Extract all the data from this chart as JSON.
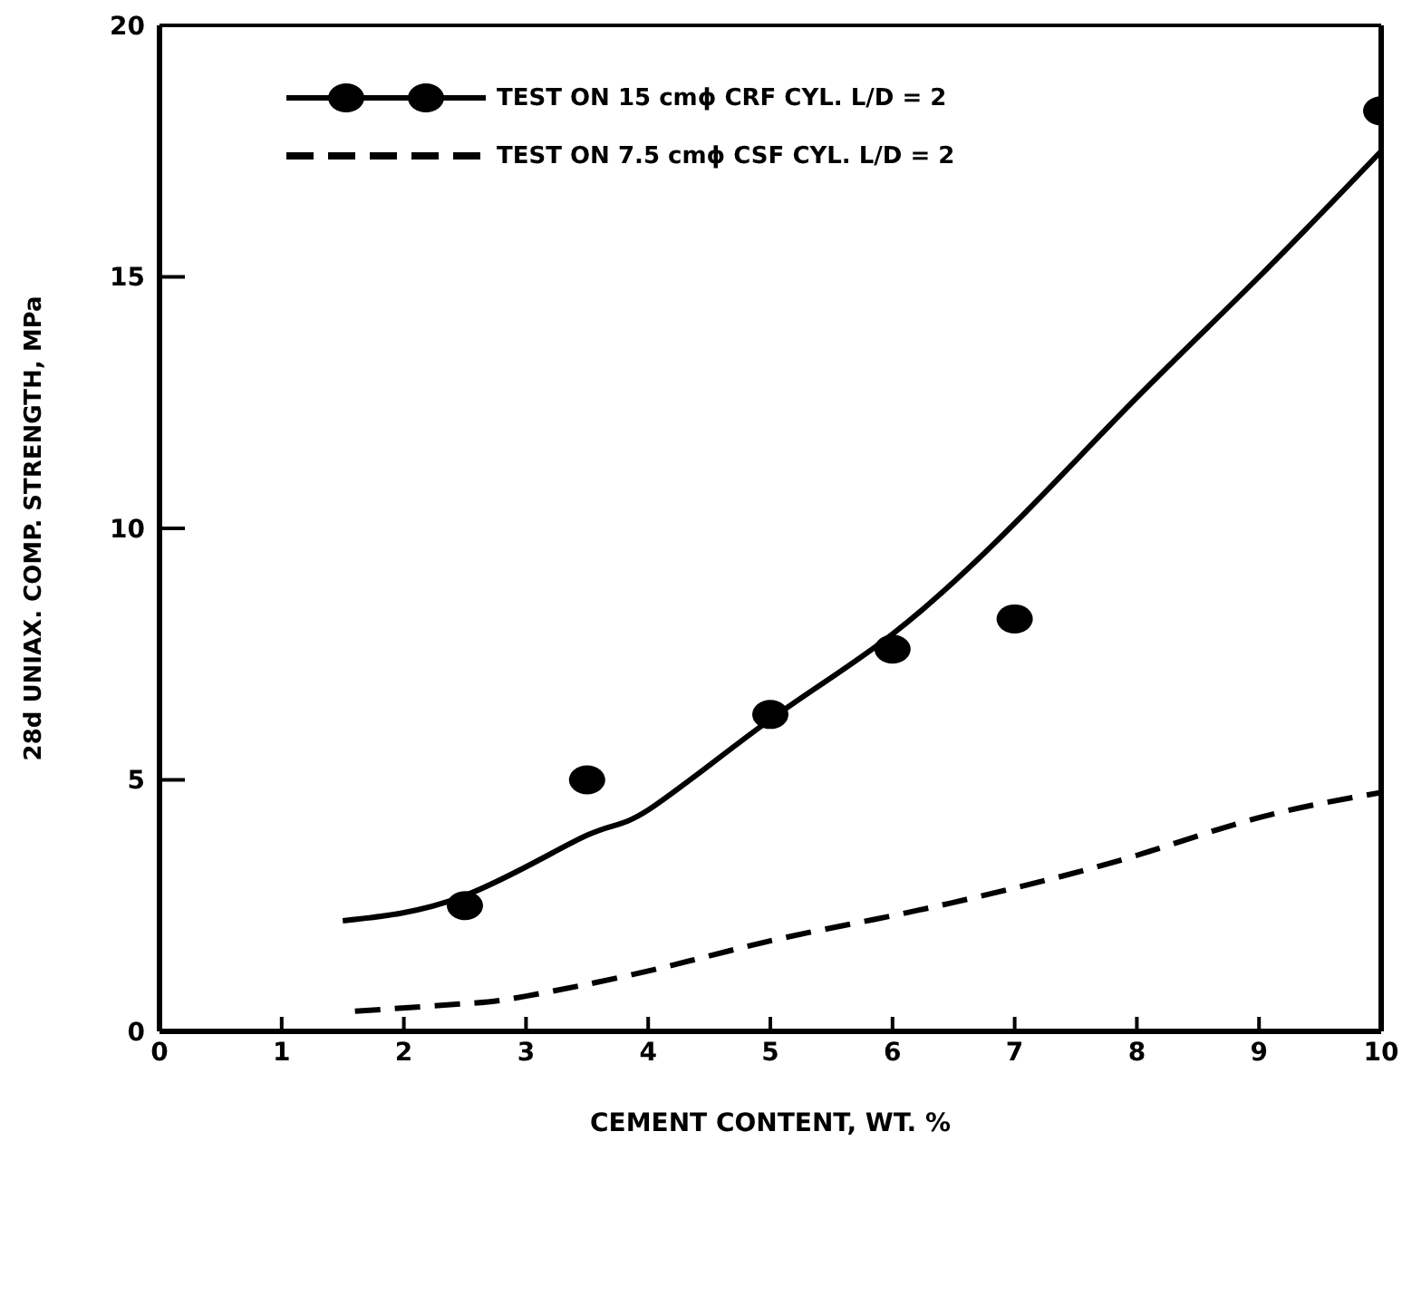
{
  "chart_data": {
    "type": "line",
    "xlabel": "CEMENT CONTENT, WT. %",
    "ylabel": "28d UNIAX. COMP. STRENGTH, MPa",
    "xlim": [
      0,
      10
    ],
    "xticks": [
      0,
      1,
      2,
      3,
      4,
      5,
      6,
      7,
      8,
      9,
      10
    ],
    "ylim": [
      0,
      20
    ],
    "yticks": [
      0,
      5,
      10,
      15,
      20
    ],
    "grid": false,
    "legend": "top",
    "series": [
      {
        "type": "line",
        "name": "TEST ON 15 cmϕ CRF CYL. L/D = 2",
        "color": "#000000",
        "line_style": "solid",
        "marker": "none",
        "x": [
          1.5,
          2.5,
          3.5,
          4,
          5,
          6,
          7,
          8,
          9,
          10
        ],
        "values": [
          2.2,
          2.7,
          3.9,
          4.4,
          6.2,
          7.9,
          10.1,
          12.6,
          15.0,
          17.5
        ]
      },
      {
        "type": "scatter",
        "color": "#000000",
        "marker": "circle",
        "x": [
          2.5,
          3.5,
          5,
          6,
          7,
          10
        ],
        "values": [
          2.5,
          5.0,
          6.3,
          7.6,
          8.2,
          18.3
        ]
      },
      {
        "type": "line",
        "name": "TEST ON 7.5 cmϕ CSF CYL. L/D = 2",
        "color": "#000000",
        "line_style": "dashed",
        "marker": "none",
        "x": [
          1.6,
          2.5,
          3,
          4,
          5,
          6,
          7,
          8,
          9,
          10
        ],
        "values": [
          0.4,
          0.55,
          0.7,
          1.2,
          1.8,
          2.3,
          2.85,
          3.5,
          4.25,
          4.75
        ]
      }
    ]
  }
}
